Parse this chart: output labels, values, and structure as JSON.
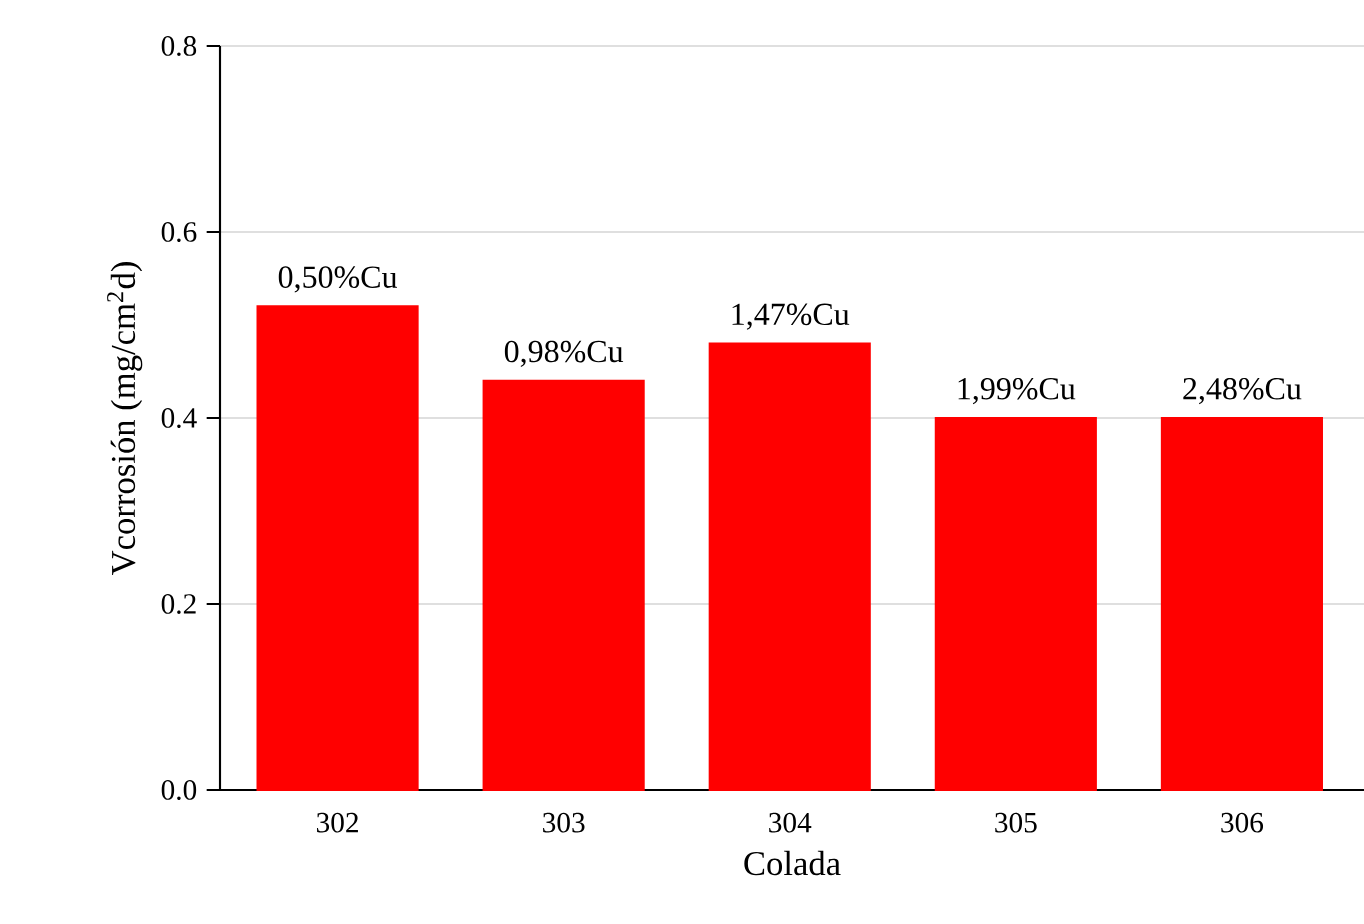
{
  "chart_data": {
    "type": "bar",
    "xlabel": "Colada",
    "ylabel": "Vcorrosión (mg/cm$^{2}$d)",
    "categories": [
      "302",
      "303",
      "304",
      "305",
      "306"
    ],
    "values": [
      0.52,
      0.44,
      0.48,
      0.4,
      0.4
    ],
    "color": "#ff0000",
    "ylim": [
      0,
      0.8
    ],
    "yticks": [
      {
        "value": 0,
        "label": "0.0"
      },
      {
        "value": 0.2,
        "label": "0.2"
      },
      {
        "value": 0.4,
        "label": "0.4"
      },
      {
        "value": 0.6,
        "label": "0.6"
      },
      {
        "value": 0.8,
        "label": "0.8"
      }
    ],
    "grid": "y",
    "annotations": [
      "0,50%Cu",
      "0,98%Cu",
      "1,47%Cu",
      "1,99%Cu",
      "2,48%Cu"
    ]
  }
}
